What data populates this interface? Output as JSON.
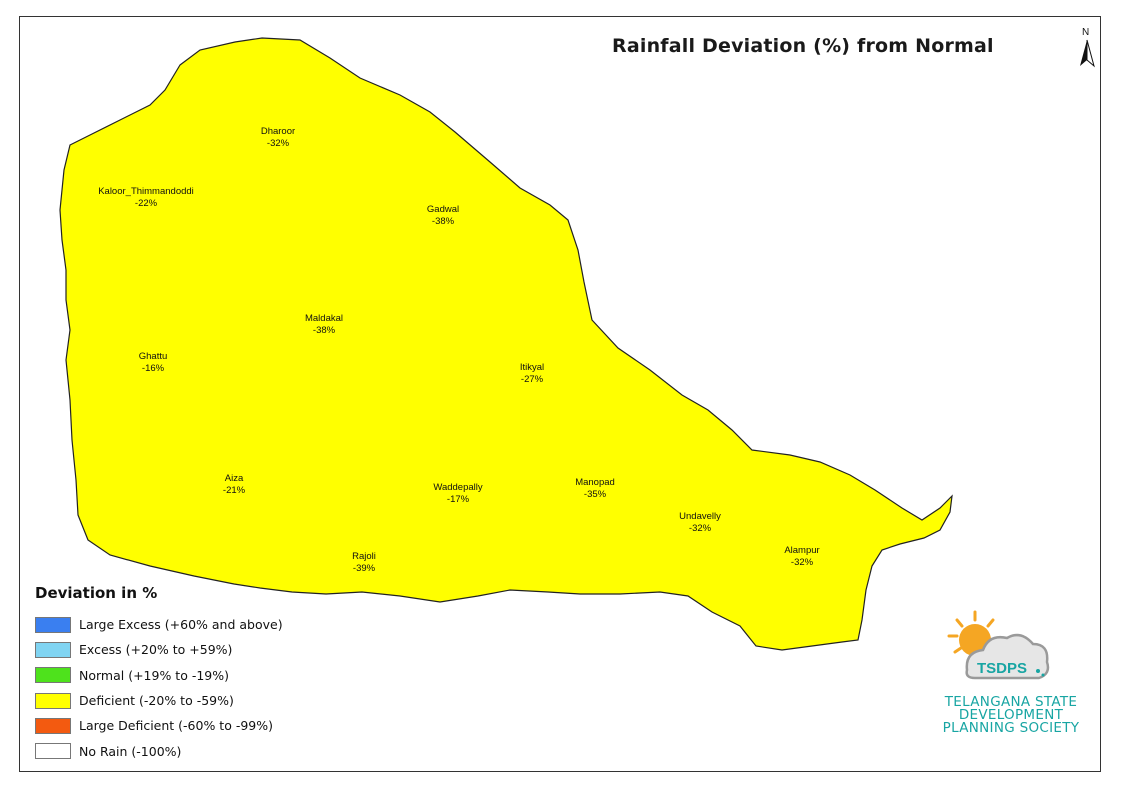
{
  "title": "Rainfall Deviation (%) from Normal",
  "north_label": "N",
  "colors": {
    "large_excess": "#3a7ff0",
    "excess": "#80d4f2",
    "normal": "#4ee21c",
    "deficient": "#ffff00",
    "large_deficient": "#f35a10",
    "no_rain": "#ffffff",
    "brand_teal": "#18a5a3",
    "sun": "#f5a623"
  },
  "mandals": [
    {
      "name": "Dharoor",
      "value": "-32%",
      "category": "deficient"
    },
    {
      "name": "Kaloor_Thimmandoddi",
      "value": "-22%",
      "category": "deficient"
    },
    {
      "name": "Gadwal",
      "value": "-38%",
      "category": "deficient"
    },
    {
      "name": "Maldakal",
      "value": "-38%",
      "category": "deficient"
    },
    {
      "name": "Ghattu",
      "value": "-16%",
      "category": "normal"
    },
    {
      "name": "Itikyal",
      "value": "-27%",
      "category": "deficient"
    },
    {
      "name": "Aiza",
      "value": "-21%",
      "category": "deficient"
    },
    {
      "name": "Waddepally",
      "value": "-17%",
      "category": "normal"
    },
    {
      "name": "Manopad",
      "value": "-35%",
      "category": "deficient"
    },
    {
      "name": "Undavelly",
      "value": "-32%",
      "category": "deficient"
    },
    {
      "name": "Rajoli",
      "value": "-39%",
      "category": "deficient"
    },
    {
      "name": "Alampur",
      "value": "-32%",
      "category": "deficient"
    }
  ],
  "legend": {
    "title": "Deviation in %",
    "items": [
      {
        "label": "Large Excess (+60% and above)",
        "color": "#3a7ff0"
      },
      {
        "label": "Excess (+20% to +59%)",
        "color": "#80d4f2"
      },
      {
        "label": "Normal (+19% to -19%)",
        "color": "#4ee21c"
      },
      {
        "label": "Deficient (-20% to -59%)",
        "color": "#ffff00"
      },
      {
        "label": "Large Deficient (-60% to -99%)",
        "color": "#f35a10"
      },
      {
        "label": "No Rain (-100%)",
        "color": "#ffffff"
      }
    ]
  },
  "logo": {
    "acronym": "TSDPS",
    "line1": "TELANGANA STATE",
    "line2": "DEVELOPMENT",
    "line3": "PLANNING SOCIETY"
  }
}
